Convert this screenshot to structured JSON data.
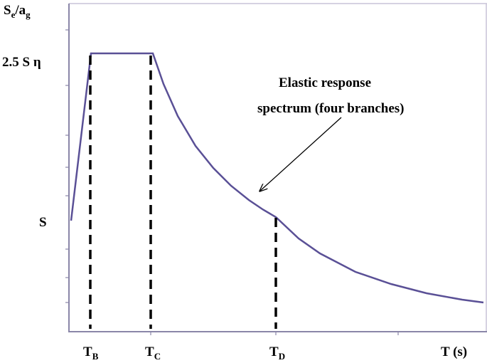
{
  "y_axis": {
    "label": {
      "main": "S",
      "sub1": "e",
      "mid": "/a",
      "sub2": "g"
    },
    "ticks": [
      "2.5 S η",
      "S"
    ]
  },
  "x_axis": {
    "label": "T (s)",
    "ticks": [
      {
        "main": "T",
        "sub": "B"
      },
      {
        "main": "T",
        "sub": "C"
      },
      {
        "main": "T",
        "sub": "D"
      }
    ]
  },
  "annotation": {
    "lines": [
      "Elastic response",
      "spectrum (four branches)"
    ]
  }
}
